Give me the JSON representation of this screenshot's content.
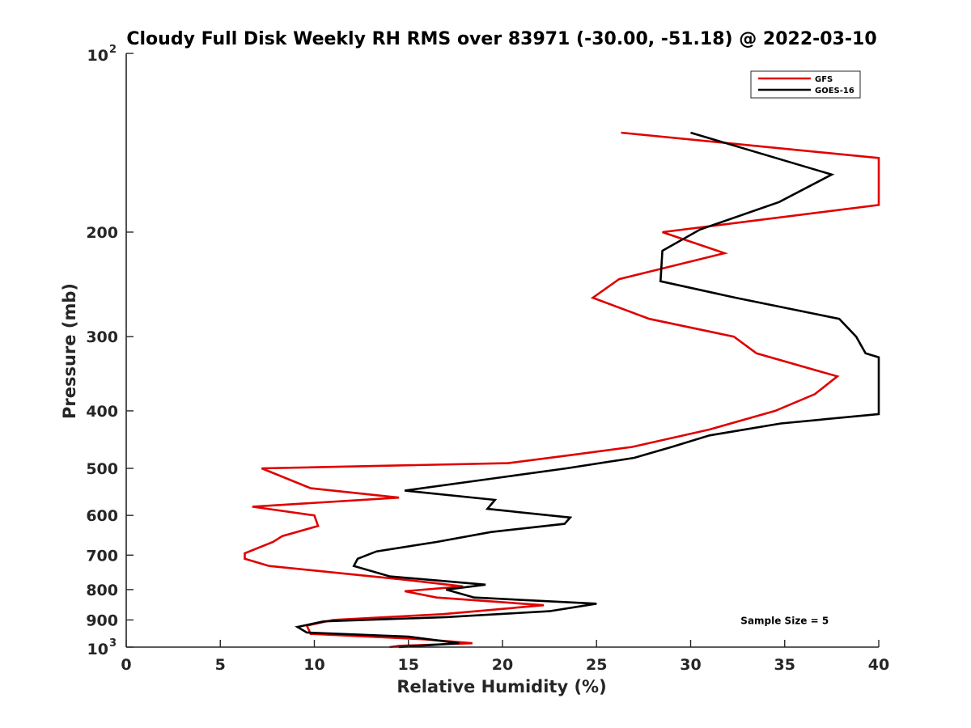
{
  "chart_data": {
    "type": "line",
    "title": "Cloudy Full Disk Weekly RH RMS over 83971 (-30.00, -51.18) @ 2022-03-10",
    "xlabel": "Relative Humidity (%)",
    "ylabel": "Pressure (mb)",
    "xlim": [
      0,
      40
    ],
    "ylim": [
      100,
      1000
    ],
    "y_scale": "log",
    "y_reversed": true,
    "grid": false,
    "legend_position": "top-right",
    "x_ticks": [
      "0",
      "5",
      "10",
      "15",
      "20",
      "25",
      "30",
      "35",
      "40"
    ],
    "y_ticks": [
      {
        "value": 100,
        "base": "10",
        "exp": "2"
      },
      {
        "value": 200,
        "label": "200"
      },
      {
        "value": 300,
        "label": "300"
      },
      {
        "value": 400,
        "label": "400"
      },
      {
        "value": 500,
        "label": "500"
      },
      {
        "value": 600,
        "label": "600"
      },
      {
        "value": 700,
        "label": "700"
      },
      {
        "value": 800,
        "label": "800"
      },
      {
        "value": 900,
        "label": "900"
      },
      {
        "value": 1000,
        "base": "10",
        "exp": "3"
      }
    ],
    "series": [
      {
        "name": "GFS",
        "color": "#e00000",
        "points": [
          [
            26.3,
            136
          ],
          [
            40.0,
            150
          ],
          [
            40.0,
            180
          ],
          [
            28.5,
            200
          ],
          [
            31.8,
            217
          ],
          [
            26.2,
            240
          ],
          [
            24.8,
            258
          ],
          [
            27.8,
            280
          ],
          [
            32.3,
            300
          ],
          [
            33.5,
            320
          ],
          [
            37.8,
            350
          ],
          [
            36.6,
            375
          ],
          [
            34.5,
            400
          ],
          [
            31.0,
            430
          ],
          [
            26.9,
            460
          ],
          [
            23.6,
            475
          ],
          [
            20.3,
            490
          ],
          [
            7.2,
            500
          ],
          [
            9.8,
            540
          ],
          [
            14.5,
            560
          ],
          [
            6.7,
            580
          ],
          [
            10.0,
            600
          ],
          [
            10.2,
            625
          ],
          [
            8.3,
            650
          ],
          [
            7.8,
            665
          ],
          [
            6.3,
            695
          ],
          [
            6.3,
            710
          ],
          [
            7.6,
            730
          ],
          [
            14.8,
            770
          ],
          [
            17.9,
            790
          ],
          [
            14.8,
            805
          ],
          [
            16.5,
            825
          ],
          [
            22.2,
            850
          ],
          [
            16.8,
            880
          ],
          [
            11.0,
            900
          ],
          [
            9.6,
            920
          ],
          [
            9.8,
            950
          ],
          [
            15.8,
            970
          ],
          [
            18.4,
            985
          ],
          [
            14.5,
            995
          ],
          [
            14.0,
            1000
          ]
        ]
      },
      {
        "name": "GOES-16",
        "color": "#000000",
        "points": [
          [
            30.0,
            136
          ],
          [
            37.5,
            160
          ],
          [
            34.7,
            178
          ],
          [
            30.5,
            198
          ],
          [
            28.5,
            215
          ],
          [
            28.4,
            242
          ],
          [
            32.4,
            258
          ],
          [
            37.9,
            280
          ],
          [
            38.8,
            300
          ],
          [
            39.3,
            320
          ],
          [
            40.0,
            325
          ],
          [
            40.0,
            405
          ],
          [
            34.8,
            420
          ],
          [
            31.0,
            440
          ],
          [
            29.0,
            460
          ],
          [
            27.0,
            480
          ],
          [
            23.4,
            500
          ],
          [
            19.5,
            520
          ],
          [
            14.8,
            545
          ],
          [
            19.6,
            565
          ],
          [
            19.2,
            585
          ],
          [
            23.6,
            605
          ],
          [
            23.3,
            620
          ],
          [
            19.4,
            640
          ],
          [
            16.5,
            665
          ],
          [
            13.3,
            690
          ],
          [
            12.3,
            710
          ],
          [
            12.1,
            730
          ],
          [
            14.0,
            760
          ],
          [
            19.1,
            785
          ],
          [
            17.0,
            800
          ],
          [
            18.5,
            825
          ],
          [
            25.0,
            845
          ],
          [
            22.5,
            870
          ],
          [
            17.0,
            890
          ],
          [
            10.5,
            905
          ],
          [
            9.1,
            925
          ],
          [
            9.6,
            945
          ],
          [
            15.0,
            960
          ],
          [
            17.7,
            985
          ],
          [
            14.5,
            1000
          ]
        ]
      }
    ],
    "annotations": [
      {
        "text": "Sample Size = 5",
        "x": 35.0,
        "y": 900
      }
    ]
  }
}
